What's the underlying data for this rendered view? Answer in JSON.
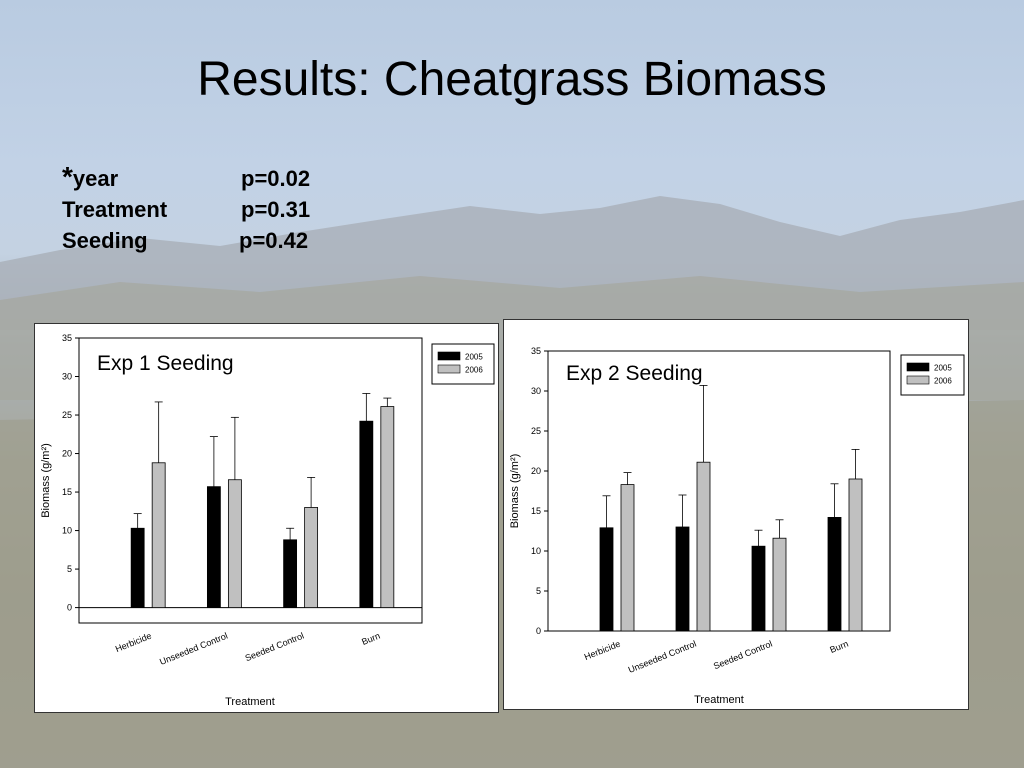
{
  "slide": {
    "title": "Results: Cheatgrass Biomass",
    "stats": [
      {
        "star": "*",
        "label": "year",
        "p": "p=0.02"
      },
      {
        "star": "",
        "label": "Treatment",
        "p": "p=0.31"
      },
      {
        "star": "",
        "label": "Seeding",
        "p": "p=0.42"
      }
    ]
  },
  "chart_data": [
    {
      "type": "bar",
      "title": "Exp 1 Seeding",
      "xlabel": "Treatment",
      "ylabel": "Biomass (g/m²)",
      "ylim": [
        -2,
        35
      ],
      "yticks": [
        0,
        5,
        10,
        15,
        20,
        25,
        30,
        35
      ],
      "categories": [
        "Herbicide",
        "Unseeded Control",
        "Seeded Control",
        "Burn"
      ],
      "legend_position": "top-right",
      "series": [
        {
          "name": "2005",
          "color": "#000000",
          "values": [
            10.3,
            15.7,
            8.8,
            24.2
          ],
          "errors": [
            1.9,
            6.5,
            1.5,
            3.6
          ]
        },
        {
          "name": "2006",
          "color": "#c0c0c0",
          "values": [
            18.8,
            16.6,
            13.0,
            26.1
          ],
          "errors": [
            7.9,
            8.1,
            3.9,
            1.1
          ]
        }
      ]
    },
    {
      "type": "bar",
      "title": "Exp 2 Seeding",
      "xlabel": "Treatment",
      "ylabel": "Biomass (g/m²)",
      "ylim": [
        0,
        35
      ],
      "yticks": [
        0,
        5,
        10,
        15,
        20,
        25,
        30,
        35
      ],
      "categories": [
        "Herbicide",
        "Unseeded Control",
        "Seeded Control",
        "Burn"
      ],
      "legend_position": "top-right",
      "series": [
        {
          "name": "2005",
          "color": "#000000",
          "values": [
            12.9,
            13.0,
            10.6,
            14.2
          ],
          "errors": [
            4.0,
            4.0,
            2.0,
            4.2
          ]
        },
        {
          "name": "2006",
          "color": "#c0c0c0",
          "values": [
            18.3,
            21.1,
            11.6,
            19.0
          ],
          "errors": [
            1.5,
            9.6,
            2.3,
            3.7
          ]
        }
      ]
    }
  ]
}
